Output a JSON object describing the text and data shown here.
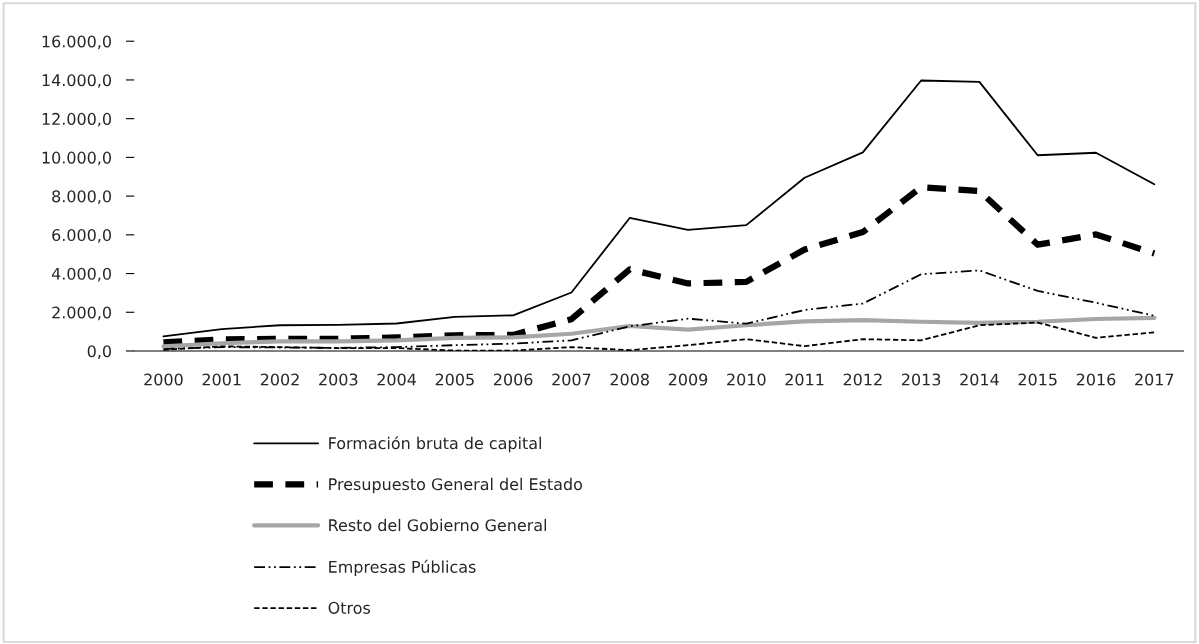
{
  "chart_data": {
    "type": "line",
    "categories": [
      "2000",
      "2001",
      "2002",
      "2003",
      "2004",
      "2005",
      "2006",
      "2007",
      "2008",
      "2009",
      "2010",
      "2011",
      "2012",
      "2013",
      "2014",
      "2015",
      "2016",
      "2017"
    ],
    "series": [
      {
        "name": "Formación bruta de capital",
        "color": "#000000",
        "line_style": "solid",
        "values": [
          750,
          1130,
          1330,
          1350,
          1420,
          1760,
          1840,
          3020,
          6870,
          6260,
          6500,
          8950,
          10260,
          13970,
          13900,
          10110,
          10240,
          8610
        ]
      },
      {
        "name": "Presupuesto General del Estado",
        "color": "#000000",
        "line_style": "dashed",
        "values": [
          440,
          600,
          630,
          630,
          700,
          810,
          830,
          1640,
          4220,
          3490,
          3570,
          5240,
          6140,
          8460,
          8260,
          5490,
          6020,
          5040
        ]
      },
      {
        "name": "Resto del Gobierno General",
        "color": "#a6a6a6",
        "line_style": "solid",
        "values": [
          240,
          400,
          500,
          500,
          550,
          680,
          700,
          890,
          1290,
          1100,
          1330,
          1530,
          1590,
          1510,
          1450,
          1510,
          1650,
          1710
        ]
      },
      {
        "name": "Empresas Públicas",
        "color": "#000000",
        "line_style": "dashdotdot",
        "values": [
          100,
          200,
          180,
          160,
          200,
          300,
          380,
          550,
          1270,
          1670,
          1410,
          2120,
          2450,
          3960,
          4160,
          3100,
          2490,
          1820
        ]
      },
      {
        "name": "Otros",
        "color": "#000000",
        "line_style": "dashed",
        "values": [
          60,
          240,
          200,
          150,
          150,
          20,
          20,
          200,
          40,
          300,
          610,
          250,
          610,
          550,
          1330,
          1470,
          680,
          960
        ]
      }
    ],
    "ylim": [
      0,
      16000
    ],
    "yticks": [
      {
        "value": 0,
        "label": "0,0"
      },
      {
        "value": 2000,
        "label": "2.000,0"
      },
      {
        "value": 4000,
        "label": "4.000,0"
      },
      {
        "value": 6000,
        "label": "6.000,0"
      },
      {
        "value": 8000,
        "label": "8.000,0"
      },
      {
        "value": 10000,
        "label": "10.000,0"
      },
      {
        "value": 12000,
        "label": "12.000,0"
      },
      {
        "value": 14000,
        "label": "14.000,0"
      },
      {
        "value": 16000,
        "label": "16.000,0"
      }
    ],
    "grid": false,
    "legend": "bottom",
    "marker": "none"
  }
}
